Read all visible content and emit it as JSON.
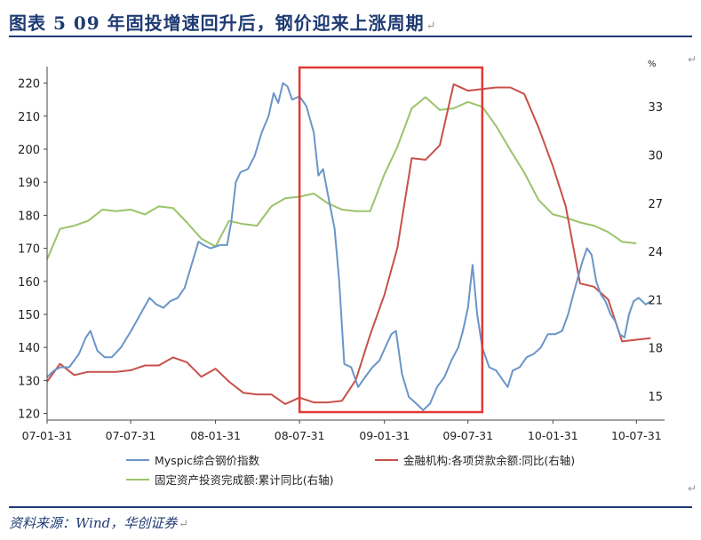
{
  "header": {
    "title": "图表 5   09 年固投增速回升后，钢价迎来上涨周期",
    "edit_mark": "↵"
  },
  "footer": {
    "source": "资料来源：Wind，华创证券",
    "edit_mark": "↵"
  },
  "colors": {
    "title": "#1f3b73",
    "steel": "#6a95c8",
    "loan": "#c8504a",
    "fai": "#9bc36a",
    "highlight": "#e03a35",
    "axis": "#444444"
  },
  "chart_data": {
    "type": "line",
    "left_axis": {
      "min": 118,
      "max": 225,
      "ticks": [
        120,
        130,
        140,
        150,
        160,
        170,
        180,
        190,
        200,
        210,
        220
      ]
    },
    "right_axis": {
      "min": 13.5,
      "max": 35.5,
      "unit": "%",
      "ticks": [
        15,
        18,
        21,
        24,
        27,
        30,
        33
      ]
    },
    "x_axis": {
      "min": "2007-01-31",
      "max": "2010-09-30",
      "tick_labels": [
        "07-01-31",
        "07-07-31",
        "08-01-31",
        "08-07-31",
        "09-01-31",
        "09-07-31",
        "10-01-31",
        "10-07-31"
      ],
      "tick_dates": [
        "2007-01-31",
        "2007-07-31",
        "2008-01-31",
        "2008-07-31",
        "2009-01-31",
        "2009-07-31",
        "2010-01-31",
        "2010-07-31"
      ]
    },
    "highlight_box": {
      "from": "2008-07-31",
      "to": "2009-08-31"
    },
    "legend": [
      "Myspic综合钢价指数",
      "金融机构:各项贷款余额:同比(右轴)",
      "固定资产投资完成额:累计同比(右轴)"
    ],
    "series": [
      {
        "name": "Myspic综合钢价指数",
        "axis": "left",
        "points": [
          [
            "2007-01-31",
            131
          ],
          [
            "2007-02-15",
            133
          ],
          [
            "2007-03-01",
            134
          ],
          [
            "2007-03-20",
            134
          ],
          [
            "2007-04-10",
            138
          ],
          [
            "2007-04-25",
            143
          ],
          [
            "2007-05-05",
            145
          ],
          [
            "2007-05-20",
            139
          ],
          [
            "2007-06-05",
            137
          ],
          [
            "2007-06-20",
            137
          ],
          [
            "2007-07-10",
            140
          ],
          [
            "2007-08-01",
            145
          ],
          [
            "2007-08-25",
            151
          ],
          [
            "2007-09-10",
            155
          ],
          [
            "2007-09-25",
            153
          ],
          [
            "2007-10-10",
            152
          ],
          [
            "2007-10-25",
            154
          ],
          [
            "2007-11-10",
            155
          ],
          [
            "2007-11-25",
            158
          ],
          [
            "2007-12-10",
            165
          ],
          [
            "2007-12-25",
            172
          ],
          [
            "2008-01-05",
            171
          ],
          [
            "2008-01-20",
            170
          ],
          [
            "2008-02-10",
            171
          ],
          [
            "2008-02-25",
            171
          ],
          [
            "2008-03-05",
            178
          ],
          [
            "2008-03-15",
            190
          ],
          [
            "2008-03-25",
            193
          ],
          [
            "2008-04-10",
            194
          ],
          [
            "2008-04-25",
            198
          ],
          [
            "2008-05-10",
            205
          ],
          [
            "2008-05-25",
            210
          ],
          [
            "2008-06-05",
            217
          ],
          [
            "2008-06-15",
            214
          ],
          [
            "2008-06-25",
            220
          ],
          [
            "2008-07-05",
            219
          ],
          [
            "2008-07-15",
            215
          ],
          [
            "2008-07-31",
            216
          ],
          [
            "2008-08-15",
            213
          ],
          [
            "2008-08-31",
            205
          ],
          [
            "2008-09-10",
            192
          ],
          [
            "2008-09-20",
            194
          ],
          [
            "2008-10-05",
            183
          ],
          [
            "2008-10-15",
            176
          ],
          [
            "2008-10-25",
            160
          ],
          [
            "2008-11-05",
            135
          ],
          [
            "2008-11-20",
            134
          ],
          [
            "2008-12-05",
            128
          ],
          [
            "2008-12-20",
            131
          ],
          [
            "2009-01-05",
            134
          ],
          [
            "2009-01-20",
            136
          ],
          [
            "2009-02-05",
            141
          ],
          [
            "2009-02-15",
            144
          ],
          [
            "2009-02-25",
            145
          ],
          [
            "2009-03-10",
            132
          ],
          [
            "2009-03-25",
            125
          ],
          [
            "2009-04-10",
            123
          ],
          [
            "2009-04-25",
            121
          ],
          [
            "2009-05-10",
            123
          ],
          [
            "2009-05-25",
            128
          ],
          [
            "2009-06-10",
            131
          ],
          [
            "2009-06-25",
            136
          ],
          [
            "2009-07-10",
            140
          ],
          [
            "2009-07-20",
            145
          ],
          [
            "2009-07-31",
            152
          ],
          [
            "2009-08-10",
            165
          ],
          [
            "2009-08-20",
            150
          ],
          [
            "2009-08-31",
            140
          ],
          [
            "2009-09-15",
            134
          ],
          [
            "2009-09-30",
            133
          ],
          [
            "2009-10-10",
            131
          ],
          [
            "2009-10-25",
            128
          ],
          [
            "2009-11-05",
            133
          ],
          [
            "2009-11-20",
            134
          ],
          [
            "2009-12-05",
            137
          ],
          [
            "2009-12-20",
            138
          ],
          [
            "2010-01-05",
            140
          ],
          [
            "2010-01-20",
            144
          ],
          [
            "2010-02-05",
            144
          ],
          [
            "2010-02-20",
            145
          ],
          [
            "2010-03-05",
            150
          ],
          [
            "2010-03-20",
            158
          ],
          [
            "2010-04-05",
            166
          ],
          [
            "2010-04-15",
            170
          ],
          [
            "2010-04-25",
            168
          ],
          [
            "2010-05-05",
            160
          ],
          [
            "2010-05-15",
            156
          ],
          [
            "2010-05-25",
            154
          ],
          [
            "2010-06-05",
            150
          ],
          [
            "2010-06-15",
            148
          ],
          [
            "2010-06-25",
            144
          ],
          [
            "2010-07-05",
            143
          ],
          [
            "2010-07-15",
            150
          ],
          [
            "2010-07-25",
            154
          ],
          [
            "2010-08-05",
            155
          ],
          [
            "2010-08-20",
            153
          ],
          [
            "2010-08-31",
            154
          ]
        ]
      },
      {
        "name": "金融机构:各项贷款余额:同比(右轴)",
        "axis": "right",
        "points": [
          [
            "2007-01-31",
            15.9
          ],
          [
            "2007-02-28",
            17.0
          ],
          [
            "2007-03-31",
            16.3
          ],
          [
            "2007-04-30",
            16.5
          ],
          [
            "2007-05-31",
            16.5
          ],
          [
            "2007-06-30",
            16.5
          ],
          [
            "2007-07-31",
            16.6
          ],
          [
            "2007-08-31",
            16.9
          ],
          [
            "2007-09-30",
            16.9
          ],
          [
            "2007-10-31",
            17.4
          ],
          [
            "2007-11-30",
            17.1
          ],
          [
            "2007-12-31",
            16.2
          ],
          [
            "2008-01-31",
            16.7
          ],
          [
            "2008-02-29",
            15.9
          ],
          [
            "2008-03-31",
            15.2
          ],
          [
            "2008-04-30",
            15.1
          ],
          [
            "2008-05-31",
            15.1
          ],
          [
            "2008-06-30",
            14.5
          ],
          [
            "2008-07-31",
            14.9
          ],
          [
            "2008-08-31",
            14.6
          ],
          [
            "2008-09-30",
            14.6
          ],
          [
            "2008-10-31",
            14.7
          ],
          [
            "2008-11-30",
            16.0
          ],
          [
            "2008-12-31",
            18.8
          ],
          [
            "2009-01-31",
            21.3
          ],
          [
            "2009-02-28",
            24.2
          ],
          [
            "2009-03-31",
            29.8
          ],
          [
            "2009-04-30",
            29.7
          ],
          [
            "2009-05-31",
            30.6
          ],
          [
            "2009-06-30",
            34.4
          ],
          [
            "2009-07-31",
            34.0
          ],
          [
            "2009-08-31",
            34.1
          ],
          [
            "2009-09-30",
            34.2
          ],
          [
            "2009-10-31",
            34.2
          ],
          [
            "2009-11-30",
            33.8
          ],
          [
            "2009-12-31",
            31.7
          ],
          [
            "2010-01-31",
            29.3
          ],
          [
            "2010-02-28",
            26.8
          ],
          [
            "2010-03-31",
            22.0
          ],
          [
            "2010-04-30",
            21.8
          ],
          [
            "2010-05-31",
            21.0
          ],
          [
            "2010-06-30",
            18.4
          ],
          [
            "2010-07-31",
            18.5
          ],
          [
            "2010-08-31",
            18.6
          ]
        ]
      },
      {
        "name": "固定资产投资完成额:累计同比(右轴)",
        "axis": "right",
        "points": [
          [
            "2007-01-31",
            23.5
          ],
          [
            "2007-02-28",
            25.4
          ],
          [
            "2007-03-31",
            25.6
          ],
          [
            "2007-04-30",
            25.9
          ],
          [
            "2007-05-31",
            26.6
          ],
          [
            "2007-06-30",
            26.5
          ],
          [
            "2007-07-31",
            26.6
          ],
          [
            "2007-08-31",
            26.3
          ],
          [
            "2007-09-30",
            26.8
          ],
          [
            "2007-10-31",
            26.7
          ],
          [
            "2007-11-30",
            25.8
          ],
          [
            "2007-12-31",
            24.8
          ],
          [
            "2008-01-31",
            24.3
          ],
          [
            "2008-02-29",
            25.9
          ],
          [
            "2008-03-31",
            25.7
          ],
          [
            "2008-04-30",
            25.6
          ],
          [
            "2008-05-31",
            26.8
          ],
          [
            "2008-06-30",
            27.3
          ],
          [
            "2008-07-31",
            27.4
          ],
          [
            "2008-08-31",
            27.6
          ],
          [
            "2008-09-30",
            27.0
          ],
          [
            "2008-10-31",
            26.6
          ],
          [
            "2008-11-30",
            26.5
          ],
          [
            "2008-12-31",
            26.5
          ],
          [
            "2009-01-31",
            28.8
          ],
          [
            "2009-02-28",
            30.5
          ],
          [
            "2009-03-31",
            32.9
          ],
          [
            "2009-04-30",
            33.6
          ],
          [
            "2009-05-31",
            32.8
          ],
          [
            "2009-06-30",
            32.9
          ],
          [
            "2009-07-31",
            33.3
          ],
          [
            "2009-08-31",
            33.0
          ],
          [
            "2009-09-30",
            31.8
          ],
          [
            "2009-10-31",
            30.3
          ],
          [
            "2009-11-30",
            28.9
          ],
          [
            "2009-12-31",
            27.2
          ],
          [
            "2010-01-31",
            26.3
          ],
          [
            "2010-02-28",
            26.1
          ],
          [
            "2010-03-31",
            25.8
          ],
          [
            "2010-04-30",
            25.6
          ],
          [
            "2010-05-31",
            25.2
          ],
          [
            "2010-06-30",
            24.6
          ],
          [
            "2010-07-31",
            24.5
          ]
        ]
      }
    ]
  }
}
